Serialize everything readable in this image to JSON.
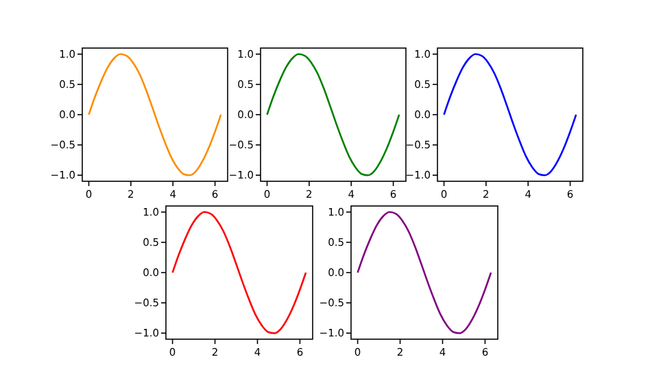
{
  "chart_data": [
    {
      "type": "line",
      "x": [
        0,
        0.3,
        0.6,
        0.9,
        1.2,
        1.5,
        1.8,
        2.1,
        2.4,
        2.7,
        3.0,
        3.3,
        3.6,
        3.9,
        4.2,
        4.5,
        4.8,
        5.1,
        5.4,
        5.7,
        6.0,
        6.28
      ],
      "series": [
        {
          "color": "#ff8c00",
          "values": [
            0,
            0.3,
            0.56,
            0.78,
            0.93,
            1.0,
            0.97,
            0.86,
            0.68,
            0.43,
            0.14,
            -0.16,
            -0.44,
            -0.69,
            -0.87,
            -0.98,
            -1.0,
            -0.93,
            -0.77,
            -0.55,
            -0.28,
            0.0
          ]
        }
      ],
      "xlim": [
        -0.31,
        6.6
      ],
      "ylim": [
        -1.1,
        1.1
      ],
      "xticks": [
        0,
        2,
        4,
        6
      ],
      "yticks": [
        {
          "value": -1,
          "label": "−1.0"
        },
        {
          "value": -0.5,
          "label": "−0.5"
        },
        {
          "value": 0,
          "label": "0.0"
        },
        {
          "value": 0.5,
          "label": "0.5"
        },
        {
          "value": 1,
          "label": "1.0"
        }
      ]
    },
    {
      "type": "line",
      "x": [
        0,
        0.3,
        0.6,
        0.9,
        1.2,
        1.5,
        1.8,
        2.1,
        2.4,
        2.7,
        3.0,
        3.3,
        3.6,
        3.9,
        4.2,
        4.5,
        4.8,
        5.1,
        5.4,
        5.7,
        6.0,
        6.28
      ],
      "series": [
        {
          "color": "#008000",
          "values": [
            0,
            0.3,
            0.56,
            0.78,
            0.93,
            1.0,
            0.97,
            0.86,
            0.68,
            0.43,
            0.14,
            -0.16,
            -0.44,
            -0.69,
            -0.87,
            -0.98,
            -1.0,
            -0.93,
            -0.77,
            -0.55,
            -0.28,
            0.0
          ]
        }
      ],
      "xlim": [
        -0.31,
        6.6
      ],
      "ylim": [
        -1.1,
        1.1
      ],
      "xticks": [
        0,
        2,
        4,
        6
      ],
      "yticks": [
        {
          "value": -1,
          "label": "−1.0"
        },
        {
          "value": -0.5,
          "label": "−0.5"
        },
        {
          "value": 0,
          "label": "0.0"
        },
        {
          "value": 0.5,
          "label": "0.5"
        },
        {
          "value": 1,
          "label": "1.0"
        }
      ]
    },
    {
      "type": "line",
      "x": [
        0,
        0.3,
        0.6,
        0.9,
        1.2,
        1.5,
        1.8,
        2.1,
        2.4,
        2.7,
        3.0,
        3.3,
        3.6,
        3.9,
        4.2,
        4.5,
        4.8,
        5.1,
        5.4,
        5.7,
        6.0,
        6.28
      ],
      "series": [
        {
          "color": "#0000ff",
          "values": [
            0,
            0.3,
            0.56,
            0.78,
            0.93,
            1.0,
            0.97,
            0.86,
            0.68,
            0.43,
            0.14,
            -0.16,
            -0.44,
            -0.69,
            -0.87,
            -0.98,
            -1.0,
            -0.93,
            -0.77,
            -0.55,
            -0.28,
            0.0
          ]
        }
      ],
      "xlim": [
        -0.31,
        6.6
      ],
      "ylim": [
        -1.1,
        1.1
      ],
      "xticks": [
        0,
        2,
        4,
        6
      ],
      "yticks": [
        {
          "value": -1,
          "label": "−1.0"
        },
        {
          "value": -0.5,
          "label": "−0.5"
        },
        {
          "value": 0,
          "label": "0.0"
        },
        {
          "value": 0.5,
          "label": "0.5"
        },
        {
          "value": 1,
          "label": "1.0"
        }
      ]
    },
    {
      "type": "line",
      "x": [
        0,
        0.3,
        0.6,
        0.9,
        1.2,
        1.5,
        1.8,
        2.1,
        2.4,
        2.7,
        3.0,
        3.3,
        3.6,
        3.9,
        4.2,
        4.5,
        4.8,
        5.1,
        5.4,
        5.7,
        6.0,
        6.28
      ],
      "series": [
        {
          "color": "#ff0000",
          "values": [
            0,
            0.3,
            0.56,
            0.78,
            0.93,
            1.0,
            0.97,
            0.86,
            0.68,
            0.43,
            0.14,
            -0.16,
            -0.44,
            -0.69,
            -0.87,
            -0.98,
            -1.0,
            -0.93,
            -0.77,
            -0.55,
            -0.28,
            0.0
          ]
        }
      ],
      "xlim": [
        -0.31,
        6.6
      ],
      "ylim": [
        -1.1,
        1.1
      ],
      "xticks": [
        0,
        2,
        4,
        6
      ],
      "yticks": [
        {
          "value": -1,
          "label": "−1.0"
        },
        {
          "value": -0.5,
          "label": "−0.5"
        },
        {
          "value": 0,
          "label": "0.0"
        },
        {
          "value": 0.5,
          "label": "0.5"
        },
        {
          "value": 1,
          "label": "1.0"
        }
      ]
    },
    {
      "type": "line",
      "x": [
        0,
        0.3,
        0.6,
        0.9,
        1.2,
        1.5,
        1.8,
        2.1,
        2.4,
        2.7,
        3.0,
        3.3,
        3.6,
        3.9,
        4.2,
        4.5,
        4.8,
        5.1,
        5.4,
        5.7,
        6.0,
        6.28
      ],
      "series": [
        {
          "color": "#800080",
          "values": [
            0,
            0.3,
            0.56,
            0.78,
            0.93,
            1.0,
            0.97,
            0.86,
            0.68,
            0.43,
            0.14,
            -0.16,
            -0.44,
            -0.69,
            -0.87,
            -0.98,
            -1.0,
            -0.93,
            -0.77,
            -0.55,
            -0.28,
            0.0
          ]
        }
      ],
      "xlim": [
        -0.31,
        6.6
      ],
      "ylim": [
        -1.1,
        1.1
      ],
      "xticks": [
        0,
        2,
        4,
        6
      ],
      "yticks": [
        {
          "value": -1,
          "label": "−1.0"
        },
        {
          "value": -0.5,
          "label": "−0.5"
        },
        {
          "value": 0,
          "label": "0.0"
        },
        {
          "value": 0.5,
          "label": "0.5"
        },
        {
          "value": 1,
          "label": "1.0"
        }
      ]
    }
  ]
}
